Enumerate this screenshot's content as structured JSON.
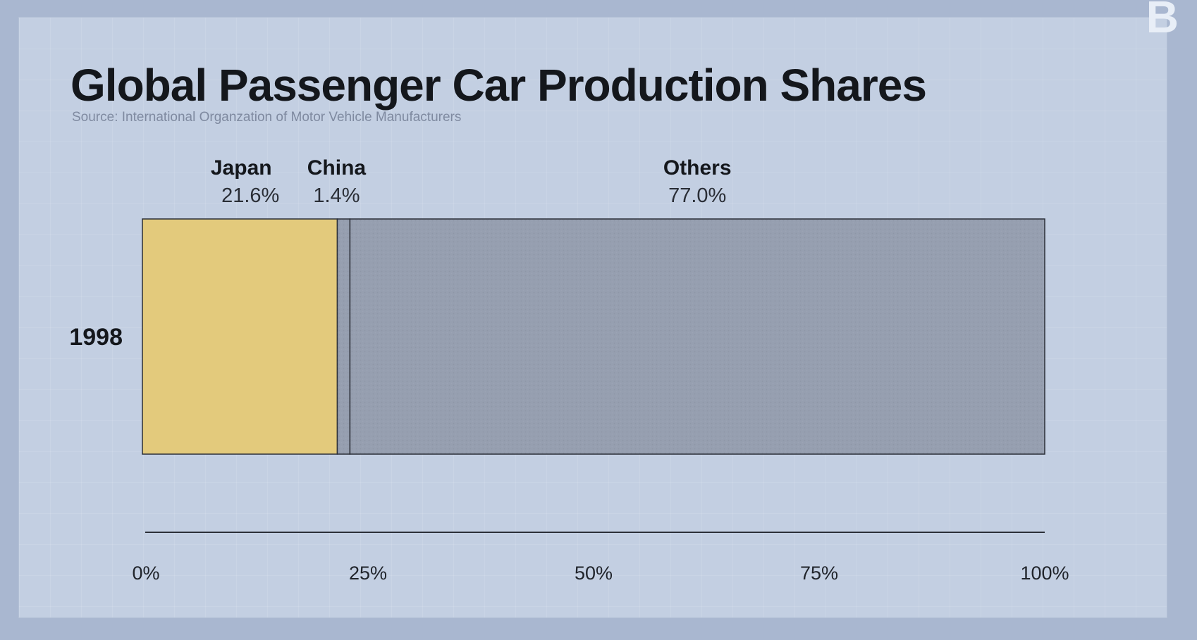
{
  "chart_data": {
    "type": "bar",
    "orientation": "horizontal",
    "stacked": true,
    "title": "Global Passenger Car Production Shares",
    "subtitle": "Source: International Organzation of Motor Vehicle Manufacturers",
    "categories": [
      "1998"
    ],
    "series": [
      {
        "name": "Japan",
        "values": [
          21.6
        ],
        "label": "21.6%",
        "color": "#e3ca7c"
      },
      {
        "name": "China",
        "values": [
          1.4
        ],
        "label": "1.4%",
        "color": "#969fb0"
      },
      {
        "name": "Others",
        "values": [
          77.0
        ],
        "label": "77.0%",
        "color": "#969fb0"
      }
    ],
    "xlim": [
      0,
      100
    ],
    "x_ticks": [
      "0%",
      "25%",
      "50%",
      "75%",
      "100%"
    ],
    "xlabel": "",
    "ylabel": "",
    "grid": false,
    "legend": "labels above segments"
  },
  "brand": {
    "logo_text": "B"
  }
}
